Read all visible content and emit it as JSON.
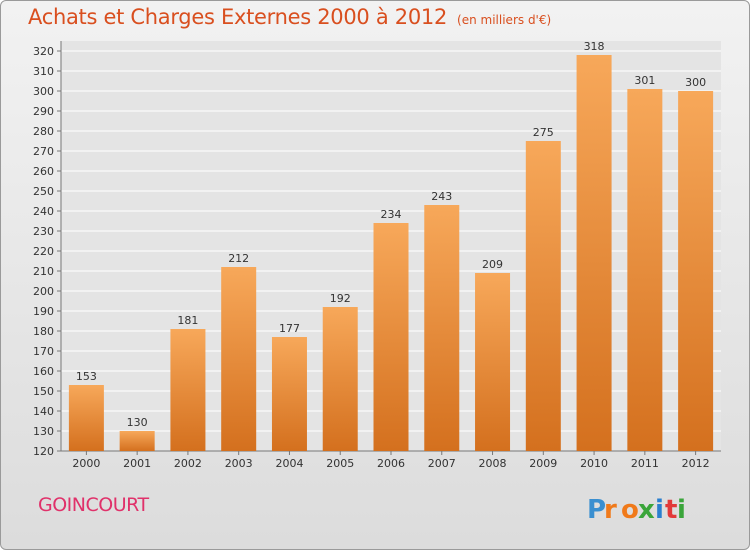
{
  "header": {
    "title": "Achats et Charges Externes 2000 à 2012",
    "subtitle": "(en milliers d'€)"
  },
  "footer": {
    "place": "GOINCOURT",
    "brand": "Proxiti",
    "brand_letters": [
      {
        "ch": "P",
        "color": "#3a8fd0"
      },
      {
        "ch": "r",
        "color": "#f07a1a"
      },
      {
        "ch": "o",
        "color": "#f07a1a"
      },
      {
        "ch": "x",
        "color": "#3aa53a"
      },
      {
        "ch": "i",
        "color": "#2a7fcf"
      },
      {
        "ch": "t",
        "color": "#e23a3a"
      },
      {
        "ch": "i",
        "color": "#3aa53a"
      }
    ]
  },
  "colors": {
    "title": "#d94f1f",
    "place": "#e0316a",
    "bar_light": "#f7a85a",
    "bar_dark": "#d4701e",
    "grid": "#ffffff"
  },
  "chart_data": {
    "type": "bar",
    "categories": [
      "2000",
      "2001",
      "2002",
      "2003",
      "2004",
      "2005",
      "2006",
      "2007",
      "2008",
      "2009",
      "2010",
      "2011",
      "2012"
    ],
    "values": [
      153,
      130,
      181,
      212,
      177,
      192,
      234,
      243,
      209,
      275,
      318,
      301,
      300
    ],
    "ylim": [
      120,
      320
    ],
    "yticks": [
      120,
      130,
      140,
      150,
      160,
      170,
      180,
      190,
      200,
      210,
      220,
      230,
      240,
      250,
      260,
      270,
      280,
      290,
      300,
      310,
      320
    ],
    "grid": true,
    "data_labels": true
  }
}
